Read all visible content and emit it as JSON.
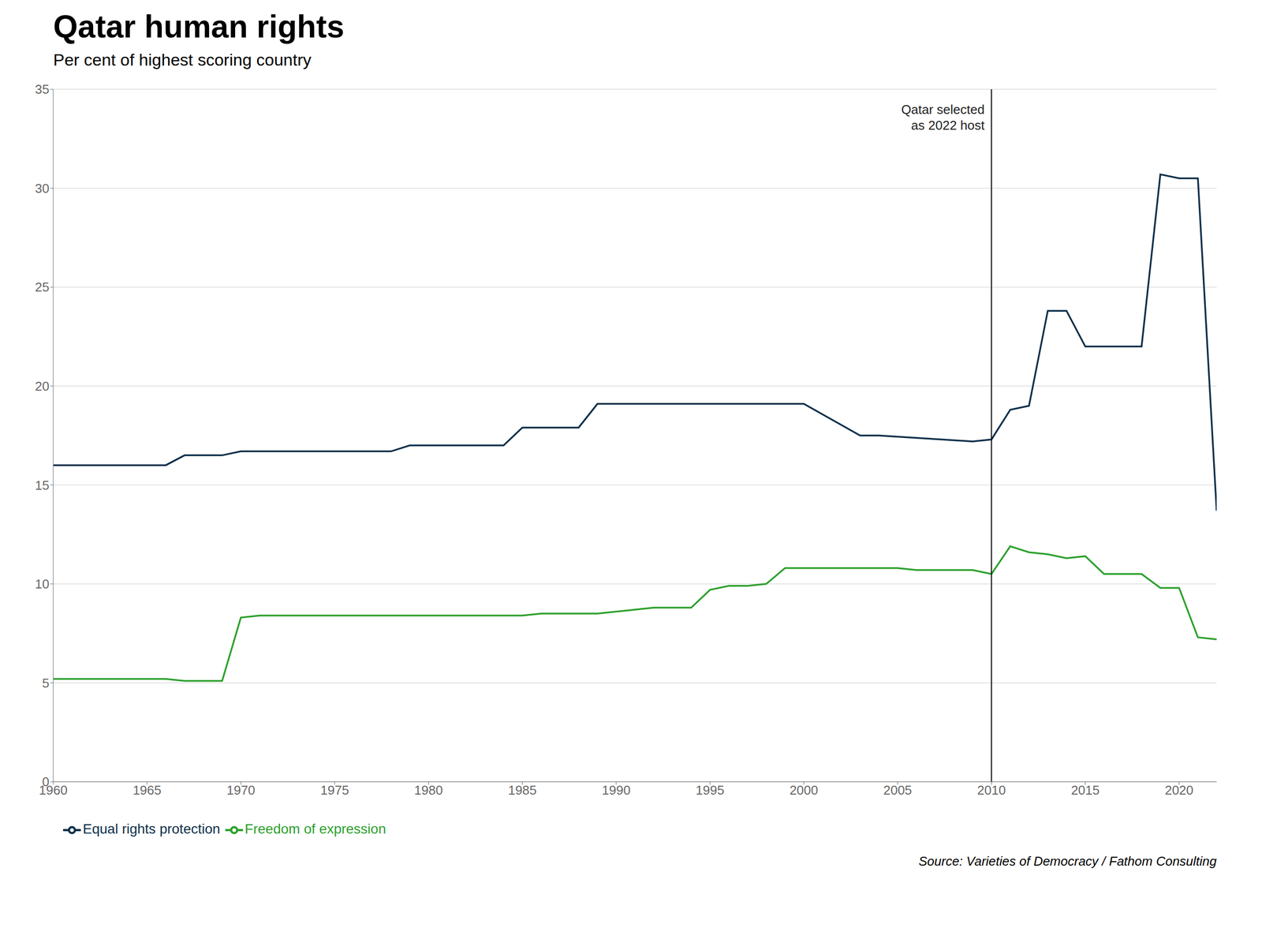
{
  "chart_data": {
    "type": "line",
    "title": "Qatar human rights",
    "subtitle": "Per cent of highest scoring country",
    "source": "Source: Varieties of Democracy / Fathom Consulting",
    "annotations": [
      {
        "x": 2010,
        "text": "Qatar selected\nas 2022 host"
      }
    ],
    "xlim": [
      1960,
      2022
    ],
    "xticks": [
      1960,
      1965,
      1970,
      1975,
      1980,
      1985,
      1990,
      1995,
      2000,
      2005,
      2010,
      2015,
      2020
    ],
    "ylim": [
      0,
      35
    ],
    "yticks": [
      0,
      5,
      10,
      15,
      20,
      25,
      30,
      35
    ],
    "grid": "y",
    "legend": "lower left",
    "series": [
      {
        "name": "Equal rights protection",
        "color": "#0d2f4a",
        "x": [
          1960,
          1966,
          1967,
          1969,
          1970,
          1978,
          1979,
          1984,
          1985,
          1988,
          1989,
          1993,
          1994,
          1999,
          2000,
          2003,
          2004,
          2009,
          2010,
          2011,
          2012,
          2013,
          2014,
          2015,
          2016,
          2017,
          2018,
          2019,
          2020,
          2021,
          2022
        ],
        "values": [
          16.0,
          16.0,
          16.5,
          16.5,
          16.7,
          16.7,
          17.0,
          17.0,
          17.9,
          17.9,
          19.1,
          19.1,
          19.1,
          19.1,
          19.1,
          17.5,
          17.5,
          17.2,
          17.3,
          18.8,
          19.0,
          23.8,
          23.8,
          22.0,
          22.0,
          22.0,
          22.0,
          30.7,
          30.5,
          30.5,
          13.7
        ]
      },
      {
        "name": "Freedom of expression",
        "color": "#2ca02c",
        "x": [
          1960,
          1966,
          1967,
          1968,
          1969,
          1970,
          1971,
          1984,
          1985,
          1986,
          1987,
          1988,
          1989,
          1990,
          1991,
          1992,
          1993,
          1994,
          1995,
          1996,
          1997,
          1998,
          1999,
          2000,
          2001,
          2005,
          2006,
          2009,
          2010,
          2011,
          2012,
          2013,
          2014,
          2015,
          2016,
          2017,
          2018,
          2019,
          2020,
          2021,
          2022
        ],
        "values": [
          5.2,
          5.2,
          5.1,
          5.1,
          5.1,
          8.3,
          8.4,
          8.4,
          8.4,
          8.5,
          8.5,
          8.5,
          8.5,
          8.6,
          8.7,
          8.8,
          8.8,
          8.8,
          9.7,
          9.9,
          9.9,
          10.0,
          10.8,
          10.8,
          10.8,
          10.8,
          10.7,
          10.7,
          10.5,
          11.9,
          11.6,
          11.5,
          11.3,
          11.4,
          10.5,
          10.5,
          10.5,
          9.8,
          9.8,
          7.3,
          7.2
        ]
      }
    ]
  }
}
